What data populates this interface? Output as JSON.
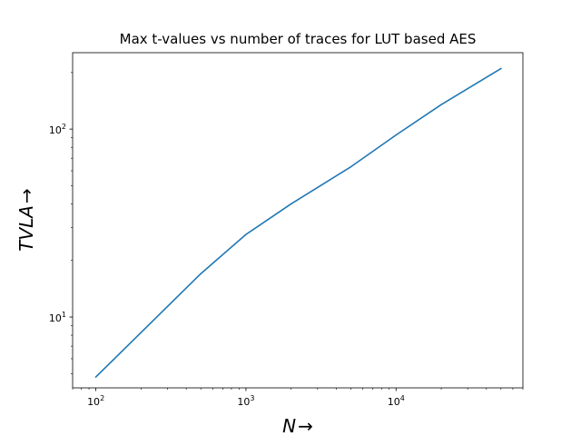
{
  "chart_data": {
    "type": "line",
    "title": "Max t-values vs number of traces for LUT based AES",
    "xlabel": {
      "var": "N",
      "arrow": "→"
    },
    "ylabel": {
      "var": "TVLA",
      "arrow": "→"
    },
    "xscale": "log",
    "yscale": "log",
    "xlim": [
      70,
      70000
    ],
    "ylim": [
      4.2,
      255
    ],
    "x_major_ticks": [
      {
        "value": 100,
        "base": "10",
        "exp": "2"
      },
      {
        "value": 1000,
        "base": "10",
        "exp": "3"
      },
      {
        "value": 10000,
        "base": "10",
        "exp": "4"
      }
    ],
    "y_major_ticks": [
      {
        "value": 10,
        "base": "10",
        "exp": "1"
      },
      {
        "value": 100,
        "base": "10",
        "exp": "2"
      }
    ],
    "grid": false,
    "series": [
      {
        "color": "#1f77b4",
        "x": [
          100,
          500,
          1000,
          2000,
          5000,
          10000,
          20000,
          50000
        ],
        "y": [
          4.8,
          17,
          27.5,
          40,
          63,
          93,
          135,
          210
        ]
      }
    ]
  }
}
